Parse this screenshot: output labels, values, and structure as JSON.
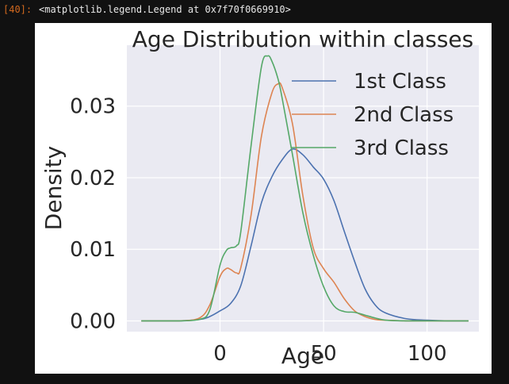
{
  "notebook": {
    "prompt": "[40]:",
    "output_text": "<matplotlib.legend.Legend at 0x7f70f0669910>"
  },
  "chart_data": {
    "type": "line",
    "title": "Age Distribution within classes",
    "xlabel": "Age",
    "ylabel": "Density",
    "xlim": [
      -45,
      125
    ],
    "ylim": [
      -0.0015,
      0.0385
    ],
    "xticks": [
      0,
      50,
      100
    ],
    "xtick_labels": [
      "0",
      "50",
      "100"
    ],
    "yticks": [
      0,
      0.01,
      0.02,
      0.03
    ],
    "ytick_labels": [
      "0.00",
      "0.01",
      "0.02",
      "0.03"
    ],
    "grid": true,
    "legend_position": "upper-right",
    "series": [
      {
        "name": "1st Class",
        "color": "#4c72b0",
        "x": [
          -38,
          -20,
          -10,
          -5,
          0,
          5,
          10,
          15,
          20,
          25,
          30,
          35,
          40,
          45,
          50,
          55,
          60,
          65,
          70,
          75,
          80,
          90,
          100,
          110,
          120
        ],
        "y": [
          0,
          0,
          0.0002,
          0.0006,
          0.0014,
          0.0024,
          0.0049,
          0.0105,
          0.0165,
          0.0201,
          0.0225,
          0.024,
          0.0232,
          0.0215,
          0.0198,
          0.0168,
          0.0125,
          0.0083,
          0.0045,
          0.0022,
          0.0011,
          0.0003,
          0.0001,
          0,
          0
        ]
      },
      {
        "name": "2nd Class",
        "color": "#dd8452",
        "x": [
          -38,
          -20,
          -10,
          -5,
          0,
          3,
          5,
          8,
          10,
          15,
          20,
          25,
          28,
          30,
          35,
          40,
          45,
          50,
          55,
          60,
          65,
          70,
          75,
          80,
          90,
          100,
          120
        ],
        "y": [
          0,
          0,
          0.0004,
          0.0022,
          0.0062,
          0.0073,
          0.0072,
          0.0067,
          0.0074,
          0.0148,
          0.0258,
          0.0318,
          0.0331,
          0.0326,
          0.0275,
          0.0175,
          0.0102,
          0.0073,
          0.0054,
          0.0031,
          0.0014,
          0.0006,
          0.0002,
          0.0001,
          0,
          0,
          0
        ]
      },
      {
        "name": "3rd Class",
        "color": "#55a868",
        "x": [
          -38,
          -20,
          -10,
          -5,
          0,
          3,
          5,
          8,
          10,
          15,
          20,
          23,
          25,
          28,
          30,
          35,
          40,
          45,
          50,
          55,
          60,
          65,
          70,
          75,
          80,
          90,
          100,
          120
        ],
        "y": [
          0,
          0,
          0.0002,
          0.0015,
          0.0078,
          0.0098,
          0.0102,
          0.0105,
          0.0124,
          0.0245,
          0.0355,
          0.037,
          0.0363,
          0.0338,
          0.0311,
          0.0232,
          0.0151,
          0.0092,
          0.0048,
          0.0021,
          0.0013,
          0.0012,
          0.0008,
          0.0004,
          0.0001,
          0,
          0,
          0
        ]
      }
    ]
  }
}
